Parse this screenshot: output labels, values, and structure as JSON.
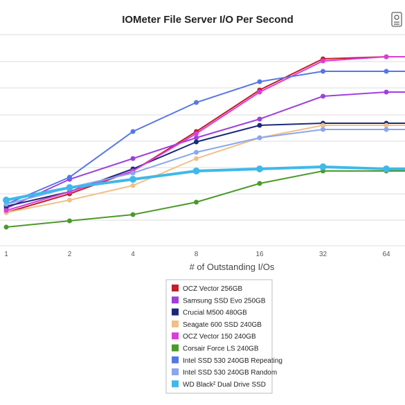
{
  "chart_data": {
    "type": "line",
    "title": "IOMeter File Server I/O Per Second",
    "xlabel": "# of Outstanding I/Os",
    "ylabel": "",
    "x_scale": "log2",
    "categories": [
      "1",
      "2",
      "4",
      "8",
      "16",
      "32",
      "64"
    ],
    "x": [
      1,
      2,
      4,
      8,
      16,
      32,
      64
    ],
    "ylim": [
      0,
      1
    ],
    "grid": true,
    "legend_position": "bottom",
    "series": [
      {
        "name": "OCZ Vector 256GB",
        "color": "#c0202a",
        "values": [
          0.16,
          0.25,
          0.36,
          0.55,
          0.75,
          0.9,
          0.91
        ]
      },
      {
        "name": "Samsung SSD Evo 250GB",
        "color": "#9d3fe0",
        "values": [
          0.18,
          0.32,
          0.42,
          0.52,
          0.61,
          0.72,
          0.74
        ]
      },
      {
        "name": "Crucial M500 480GB",
        "color": "#1a2a7a",
        "values": [
          0.19,
          0.26,
          0.37,
          0.5,
          0.58,
          0.59,
          0.59
        ]
      },
      {
        "name": "Seagate 600 SSD 240GB",
        "color": "#f0c088",
        "values": [
          0.16,
          0.22,
          0.29,
          0.42,
          0.52,
          0.58,
          0.58
        ]
      },
      {
        "name": "OCZ Vector 150 240GB",
        "color": "#d93ed8",
        "values": [
          0.17,
          0.26,
          0.36,
          0.54,
          0.74,
          0.89,
          0.91
        ]
      },
      {
        "name": "Corsair Force LS 240GB",
        "color": "#4a9a2a",
        "values": [
          0.09,
          0.12,
          0.15,
          0.21,
          0.3,
          0.36,
          0.36
        ]
      },
      {
        "name": "Intel SSD 530 240GB Repeating",
        "color": "#5577e6",
        "values": [
          0.2,
          0.33,
          0.55,
          0.69,
          0.79,
          0.84,
          0.84
        ]
      },
      {
        "name": "Intel SSD 530 240GB Random",
        "color": "#8aa6f0",
        "values": [
          0.2,
          0.28,
          0.35,
          0.45,
          0.52,
          0.56,
          0.56
        ]
      },
      {
        "name": "WD Black² Dual Drive SSD",
        "color": "#3fb8ea",
        "values": [
          0.22,
          0.28,
          0.32,
          0.36,
          0.37,
          0.38,
          0.37
        ]
      }
    ]
  }
}
